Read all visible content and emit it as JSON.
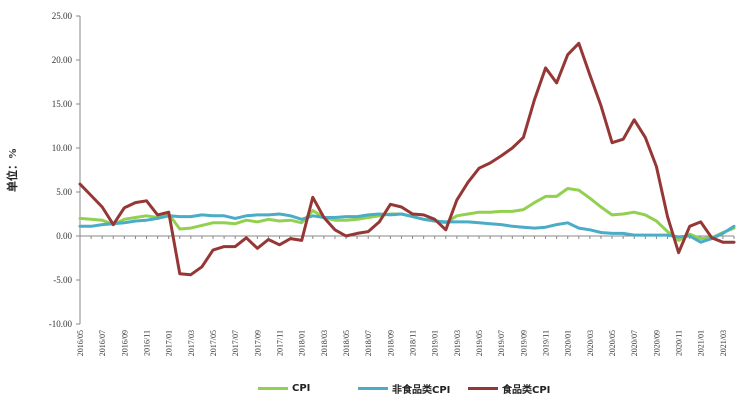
{
  "chart_data": {
    "type": "line",
    "title": "",
    "xlabel": "",
    "ylabel": "单位：%",
    "ylim": [
      -10,
      25
    ],
    "yticks": [
      25,
      20,
      15,
      10,
      5,
      0,
      -5,
      -10
    ],
    "ytick_labels": [
      "25.00",
      "20.00",
      "15.00",
      "10.00",
      "5.00",
      "0.00",
      "-5.00",
      "-10.00"
    ],
    "grid": false,
    "legend_position": "bottom",
    "x": [
      "2016/05",
      "2016/06",
      "2016/07",
      "2016/08",
      "2016/09",
      "2016/10",
      "2016/11",
      "2016/12",
      "2017/01",
      "2017/02",
      "2017/03",
      "2017/04",
      "2017/05",
      "2017/06",
      "2017/07",
      "2017/08",
      "2017/09",
      "2017/10",
      "2017/11",
      "2017/12",
      "2018/01",
      "2018/02",
      "2018/03",
      "2018/04",
      "2018/05",
      "2018/06",
      "2018/07",
      "2018/08",
      "2018/09",
      "2018/10",
      "2018/11",
      "2018/12",
      "2019/01",
      "2019/02",
      "2019/03",
      "2019/04",
      "2019/05",
      "2019/06",
      "2019/07",
      "2019/08",
      "2019/09",
      "2019/10",
      "2019/11",
      "2019/12",
      "2020/01",
      "2020/02",
      "2020/03",
      "2020/04",
      "2020/05",
      "2020/06",
      "2020/07",
      "2020/08",
      "2020/09",
      "2020/10",
      "2020/11",
      "2020/12",
      "2021/01",
      "2021/02",
      "2021/03",
      "2021/04"
    ],
    "x_tick_labels": [
      "2016/05",
      "2016/07",
      "2016/09",
      "2016/11",
      "2017/01",
      "2017/03",
      "2017/05",
      "2017/07",
      "2017/09",
      "2017/11",
      "2018/01",
      "2018/03",
      "2018/05",
      "2018/07",
      "2018/09",
      "2018/11",
      "2019/01",
      "2019/03",
      "2019/05",
      "2019/07",
      "2019/09",
      "2019/11",
      "2020/01",
      "2020/03",
      "2020/05",
      "2020/07",
      "2020/09",
      "2020/11",
      "2021/01",
      "2021/03"
    ],
    "series": [
      {
        "name": "CPI",
        "color": "#92d050",
        "values": [
          2.0,
          1.9,
          1.8,
          1.3,
          1.9,
          2.1,
          2.3,
          2.1,
          2.5,
          0.8,
          0.9,
          1.2,
          1.5,
          1.5,
          1.4,
          1.8,
          1.6,
          1.9,
          1.7,
          1.8,
          1.5,
          2.9,
          2.1,
          1.8,
          1.8,
          1.9,
          2.1,
          2.3,
          2.5,
          2.5,
          2.2,
          1.9,
          1.7,
          1.5,
          2.3,
          2.5,
          2.7,
          2.7,
          2.8,
          2.8,
          3.0,
          3.8,
          4.5,
          4.5,
          5.4,
          5.2,
          4.3,
          3.3,
          2.4,
          2.5,
          2.7,
          2.4,
          1.7,
          0.5,
          -0.5,
          0.2,
          -0.3,
          -0.2,
          0.4,
          0.9
        ]
      },
      {
        "name": "非食品类CPI",
        "color": "#4bacc6",
        "values": [
          1.1,
          1.1,
          1.3,
          1.4,
          1.5,
          1.7,
          1.8,
          2.0,
          2.3,
          2.2,
          2.2,
          2.4,
          2.3,
          2.3,
          2.0,
          2.3,
          2.4,
          2.4,
          2.5,
          2.3,
          1.9,
          2.3,
          2.1,
          2.1,
          2.2,
          2.2,
          2.4,
          2.5,
          2.4,
          2.5,
          2.2,
          1.9,
          1.7,
          1.6,
          1.6,
          1.6,
          1.5,
          1.4,
          1.3,
          1.1,
          1.0,
          0.9,
          1.0,
          1.3,
          1.5,
          0.9,
          0.7,
          0.4,
          0.3,
          0.3,
          0.1,
          0.1,
          0.1,
          0.1,
          -0.1,
          0.0,
          -0.7,
          -0.3,
          0.3,
          1.1
        ]
      },
      {
        "name": "食品类CPI",
        "color": "#953735",
        "values": [
          5.9,
          4.6,
          3.3,
          1.3,
          3.2,
          3.8,
          4.0,
          2.4,
          2.7,
          -4.3,
          -4.4,
          -3.5,
          -1.6,
          -1.2,
          -1.2,
          -0.2,
          -1.4,
          -0.4,
          -1.0,
          -0.3,
          -0.5,
          4.4,
          2.1,
          0.7,
          0.0,
          0.3,
          0.5,
          1.6,
          3.6,
          3.3,
          2.5,
          2.4,
          1.9,
          0.7,
          4.1,
          6.1,
          7.7,
          8.3,
          9.1,
          10.0,
          11.2,
          15.5,
          19.1,
          17.4,
          20.6,
          21.9,
          18.3,
          14.8,
          10.6,
          11.0,
          13.2,
          11.2,
          7.9,
          2.2,
          -1.9,
          1.1,
          1.6,
          -0.2,
          -0.7,
          -0.7
        ]
      }
    ]
  }
}
